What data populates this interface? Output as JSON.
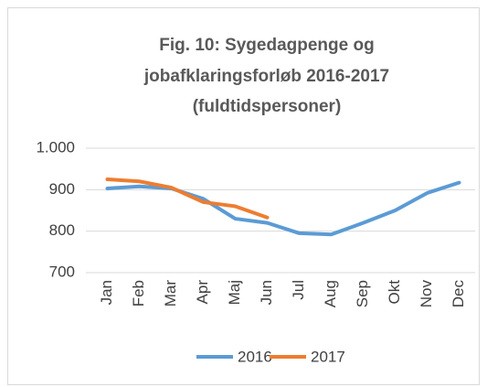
{
  "chart_data": {
    "type": "line",
    "title": [
      "Fig. 10: Sygedagpenge og",
      "jobafklaringsforløb 2016-2017",
      "(fuldtidspersoner)"
    ],
    "categories": [
      "Jan",
      "Feb",
      "Mar",
      "Apr",
      "Maj",
      "Jun",
      "Jul",
      "Aug",
      "Sep",
      "Okt",
      "Nov",
      "Dec"
    ],
    "series": [
      {
        "name": "2016",
        "color": "#5b9bd5",
        "values": [
          903,
          908,
          903,
          878,
          830,
          820,
          795,
          792,
          820,
          850,
          892,
          917
        ]
      },
      {
        "name": "2017",
        "color": "#ed7d31",
        "values": [
          925,
          920,
          905,
          870,
          860,
          833,
          null,
          null,
          null,
          null,
          null,
          null
        ]
      }
    ],
    "ylim": [
      700,
      1000
    ],
    "yticks": [
      700,
      800,
      900,
      {
        "value": 1000,
        "label": "1.000"
      }
    ],
    "grid": true,
    "legend": "bottom"
  }
}
